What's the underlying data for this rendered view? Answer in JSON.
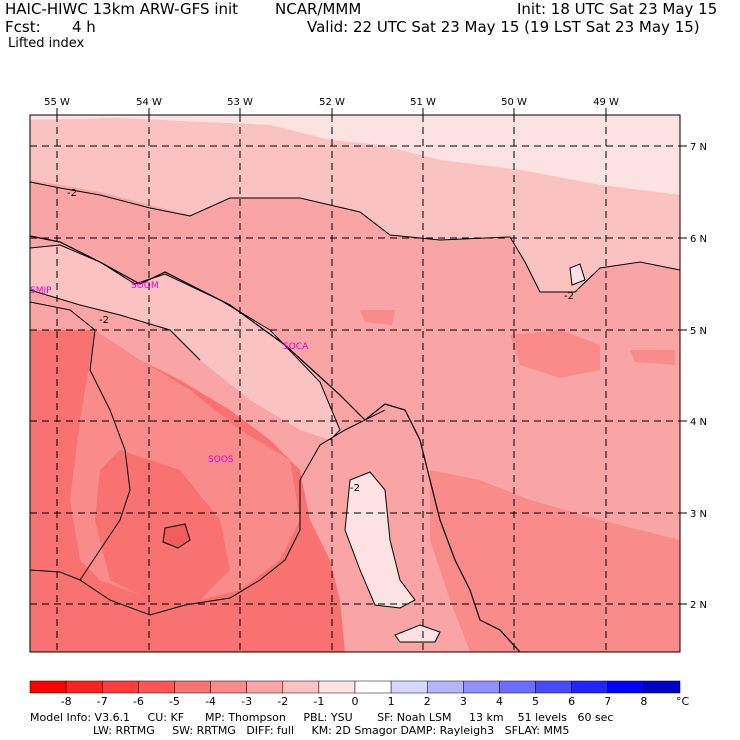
{
  "header": {
    "model": "HAIC-HIWC 13km ARW-GFS init",
    "org": "NCAR/MMM",
    "init": "Init: 18 UTC Sat 23 May 15",
    "fcst_label": "Fcst:",
    "fcst_value": "4 h",
    "valid": "Valid: 22 UTC Sat 23 May 15 (19 LST Sat 23 May 15)",
    "field": "Lifted index"
  },
  "map": {
    "lon_labels": [
      "55 W",
      "54 W",
      "53 W",
      "52 W",
      "51 W",
      "50 W",
      "49 W"
    ],
    "lat_labels": [
      "7 N",
      "6 N",
      "5 N",
      "4 N",
      "3 N",
      "2 N"
    ],
    "cities": [
      "SMJP",
      "SOCA",
      "SOOS",
      "SOOM"
    ],
    "contour_labels": [
      "-2",
      "-2",
      "-2",
      "-2"
    ]
  },
  "colorbar": {
    "ticks": [
      "-8",
      "-7",
      "-6",
      "-5",
      "-4",
      "-3",
      "-2",
      "-1",
      "0",
      "1",
      "2",
      "3",
      "4",
      "5",
      "6",
      "7",
      "8"
    ],
    "unit": "°C",
    "colors": [
      "#ff0000",
      "#ff2020",
      "#ff3b3b",
      "#ff5555",
      "#f87272",
      "#f98b8b",
      "#faa5a5",
      "#fbc2c2",
      "#fde2e2",
      "#ffffff",
      "#d8d8ff",
      "#b4b4ff",
      "#9090ff",
      "#6c6cff",
      "#4848ff",
      "#2424ff",
      "#0000ff",
      "#0000cc"
    ]
  },
  "footer": {
    "line1": "Model Info: V3.6.1     CU: KF      MP: Thompson     PBL: YSU       SF: Noah LSM     13 km    51 levels   60 sec",
    "line2": "                  LW: RRTMG     SW: RRTMG   DIFF: full     KM: 2D Smagor DAMP: Rayleigh3   SFLAY: MM5"
  }
}
